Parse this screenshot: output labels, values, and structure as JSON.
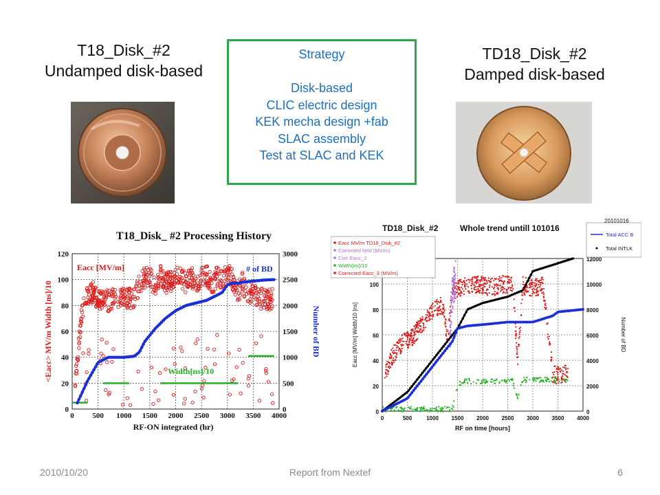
{
  "slide": {
    "left_title": {
      "line1": "T18_Disk_#2",
      "line2": "Undamped disk-based"
    },
    "right_title": {
      "line1": "TD18_Disk_#2",
      "line2": "Damped disk-based"
    },
    "strategy": {
      "heading": "Strategy",
      "items": [
        "Disk-based",
        "CLIC electric design",
        "KEK mecha design +fab",
        "SLAC assembly",
        "Test at SLAC and KEK"
      ]
    },
    "footer": {
      "date": "2010/10/20",
      "center": "Report from Nextef",
      "page": "6"
    }
  },
  "colors": {
    "strategy_border": "#2ea64a",
    "strategy_text": "#1f6fbf",
    "eacc": "#e01818",
    "bd": "#1a2fd6",
    "width": "#22b022",
    "black_trend": "#000000",
    "field": "#b070e0"
  },
  "chart_data": [
    {
      "type": "scatter",
      "title": "T18_Disk_ #2 Processing History",
      "xlabel": "RF-ON integrated (hr)",
      "ylabel": "<Eacc> MV/m Width [ns]/10",
      "y2label": "Number of BD",
      "xlim": [
        0,
        4000
      ],
      "ylim": [
        0,
        120
      ],
      "y2lim": [
        0,
        3000
      ],
      "xticks": [
        "0",
        "500",
        "1000",
        "1500",
        "2000",
        "2500",
        "3000",
        "3500",
        "4000"
      ],
      "yticks": [
        "0",
        "20",
        "40",
        "60",
        "80",
        "100",
        "120"
      ],
      "y2ticks": [
        "0",
        "500",
        "1000",
        "1500",
        "2000",
        "2500",
        "3000"
      ],
      "grid": true,
      "annotations": [
        "Eacc [MV/m]",
        "# of BD",
        "Width[ns]/10"
      ],
      "series": [
        {
          "name": "Eacc [MV/m]",
          "x": [
            60,
            120,
            200,
            300,
            400,
            500,
            600,
            700,
            800,
            900,
            1000,
            1100,
            1200,
            1300,
            1400,
            1500,
            1600,
            1700,
            1800,
            1900,
            2000,
            2100,
            2200,
            2300,
            2400,
            2500,
            2600,
            2700,
            2800,
            2900,
            3000,
            3100,
            3200,
            3300,
            3400,
            3500,
            3600,
            3700,
            3800,
            3900
          ],
          "y": [
            20,
            50,
            80,
            90,
            92,
            86,
            88,
            85,
            87,
            86,
            88,
            87,
            86,
            99,
            103,
            104,
            96,
            106,
            99,
            100,
            105,
            103,
            99,
            104,
            99,
            103,
            106,
            97,
            105,
            100,
            108,
            102,
            90,
            100,
            85,
            96,
            86,
            88,
            86,
            88
          ]
        },
        {
          "name": "# of BD",
          "x": [
            100,
            300,
            500,
            700,
            1000,
            1200,
            1300,
            1400,
            1600,
            1800,
            2000,
            2200,
            2400,
            2600,
            2800,
            2900,
            3000,
            3100,
            3200,
            3300,
            3500,
            3700,
            3900
          ],
          "y": [
            120,
            550,
            900,
            1000,
            1000,
            1020,
            1100,
            1300,
            1550,
            1750,
            1900,
            2000,
            2050,
            2100,
            2200,
            2250,
            2400,
            2430,
            2430,
            2450,
            2470,
            2490,
            2500
          ]
        },
        {
          "name": "Width[ns]/10",
          "x": [
            0,
            300,
            350,
            500,
            600,
            1100,
            1200,
            1350,
            1450,
            1700,
            2050,
            2200,
            2900,
            3100,
            3200,
            3400,
            3500,
            3600,
            3700,
            3900
          ],
          "y": [
            5,
            5,
            14,
            18,
            20,
            20,
            10,
            14,
            5,
            20,
            20,
            20,
            20,
            20,
            20,
            41,
            41,
            41,
            41,
            41
          ]
        }
      ]
    },
    {
      "type": "scatter",
      "title": "TD18_Disk_#2",
      "subtitle": "Whole trend untill 101016",
      "xlabel": "RF on time [hours]",
      "ylabel": "Eacc [MV/m] Width/10 [ns]",
      "y2label": "Number of BD",
      "xlim": [
        0,
        4000
      ],
      "ylim": [
        0,
        120
      ],
      "y2lim": [
        0,
        12000
      ],
      "xticks": [
        "0",
        "500",
        "1000",
        "1500",
        "2000",
        "2500",
        "3000",
        "3500",
        "4000"
      ],
      "yticks": [
        "0",
        "20",
        "40",
        "60",
        "80",
        "100",
        "120"
      ],
      "y2ticks": [
        "0",
        "2000",
        "4000",
        "6000",
        "8000",
        "10000",
        "12000"
      ],
      "grid": true,
      "legend": [
        "Eacc MV/m  TD18_Disk_#2",
        "Corrected field (MV/m)",
        "Corr Eacc_2",
        "Width(ns)/10",
        "Corrected Eacc_3 (MV/m)"
      ],
      "legend2": {
        "date": "20101016",
        "entries": [
          "Total ACC B",
          "Total INTLK"
        ]
      },
      "series": [
        {
          "name": "Eacc MV/m  TD18_Disk_#2",
          "x": [
            50,
            200,
            400,
            600,
            800,
            1000,
            1200,
            1300,
            1400,
            1600,
            1800,
            2000,
            2200,
            2400,
            2600,
            2700,
            2800,
            3000,
            3200,
            3400,
            3600,
            3700
          ],
          "y": [
            30,
            45,
            55,
            60,
            70,
            80,
            85,
            60,
            95,
            99,
            101,
            100,
            99,
            101,
            100,
            40,
            100,
            98,
            100,
            30,
            30,
            32
          ]
        },
        {
          "name": "Width(ns)/10",
          "x": [
            0,
            500,
            1000,
            1400,
            1500,
            1600,
            2000,
            2400,
            2600,
            2700,
            2800,
            3000,
            3400,
            3700
          ],
          "y": [
            2,
            2,
            2,
            2,
            20,
            24,
            24,
            24,
            24,
            10,
            25,
            25,
            25,
            25
          ]
        },
        {
          "name": "Corrected field (MV/m)",
          "x": [
            1350,
            1380,
            1400,
            1420,
            1440,
            1460
          ],
          "y": [
            60,
            90,
            95,
            100,
            105,
            110
          ]
        },
        {
          "name": "Total ACC B",
          "x": [
            0,
            500,
            1000,
            1400,
            1500,
            1700,
            2000,
            2500,
            3000,
            3400,
            3500,
            4000
          ],
          "y": [
            0,
            1000,
            3500,
            5500,
            6500,
            6700,
            6800,
            7000,
            7000,
            7500,
            7800,
            8000
          ]
        },
        {
          "name": "Total INTLK",
          "x": [
            0,
            500,
            1000,
            1500,
            1700,
            2000,
            2500,
            2800,
            3000,
            3400,
            3800
          ],
          "y": [
            0,
            1500,
            4000,
            6500,
            8000,
            8500,
            9000,
            9500,
            11000,
            11500,
            12000
          ]
        }
      ]
    }
  ]
}
